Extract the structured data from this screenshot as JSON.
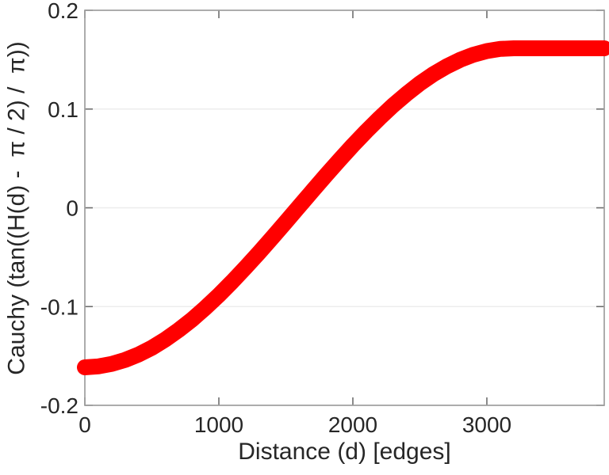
{
  "figure": {
    "background": "#ffffff"
  },
  "chart_data": {
    "type": "line",
    "title": "",
    "xlabel": "Distance (d) [edges]",
    "ylabel": "Cauchy (tan((H(d) -  π / 2) /  π))",
    "xlim": [
      0,
      3876
    ],
    "ylim": [
      -0.2,
      0.2
    ],
    "xticks": [
      0,
      1000,
      2000,
      3000
    ],
    "yticks": [
      -0.2,
      -0.1,
      0,
      0.1,
      0.2
    ],
    "xtick_labels": [
      "0",
      "1000",
      "2000",
      "3000"
    ],
    "ytick_labels": [
      "-0.2",
      "-0.1",
      "0",
      "0.1",
      "0.2"
    ],
    "grid": {
      "horizontal": true,
      "vertical": false
    },
    "legend": "none",
    "style": {
      "axis_color": "#9e9e9e",
      "tick_color": "#6e6e6e",
      "grid_color": "#ececec",
      "text_color": "#262626"
    },
    "series": [
      {
        "color": "#ff0000",
        "line_width": 20,
        "x": [
          0,
          100,
          200,
          300,
          400,
          500,
          600,
          700,
          800,
          900,
          1000,
          1100,
          1200,
          1300,
          1400,
          1500,
          1600,
          1700,
          1800,
          1900,
          2000,
          2100,
          2200,
          2300,
          2400,
          2500,
          2600,
          2700,
          2800,
          2900,
          3000,
          3100,
          3200,
          3300,
          3400,
          3500,
          3600,
          3700,
          3800,
          3876
        ],
        "y": [
          -0.1615,
          -0.1606,
          -0.1581,
          -0.1541,
          -0.1486,
          -0.1417,
          -0.1334,
          -0.1238,
          -0.1131,
          -0.1012,
          -0.0884,
          -0.0747,
          -0.0603,
          -0.0454,
          -0.03,
          -0.0143,
          0.0016,
          0.0174,
          0.0331,
          0.0484,
          0.0633,
          0.0775,
          0.091,
          0.1037,
          0.1153,
          0.1259,
          0.1352,
          0.1432,
          0.1498,
          0.155,
          0.1587,
          0.1609,
          0.1615,
          0.1615,
          0.1615,
          0.1615,
          0.1615,
          0.1615,
          0.1615,
          0.1615
        ]
      }
    ]
  }
}
